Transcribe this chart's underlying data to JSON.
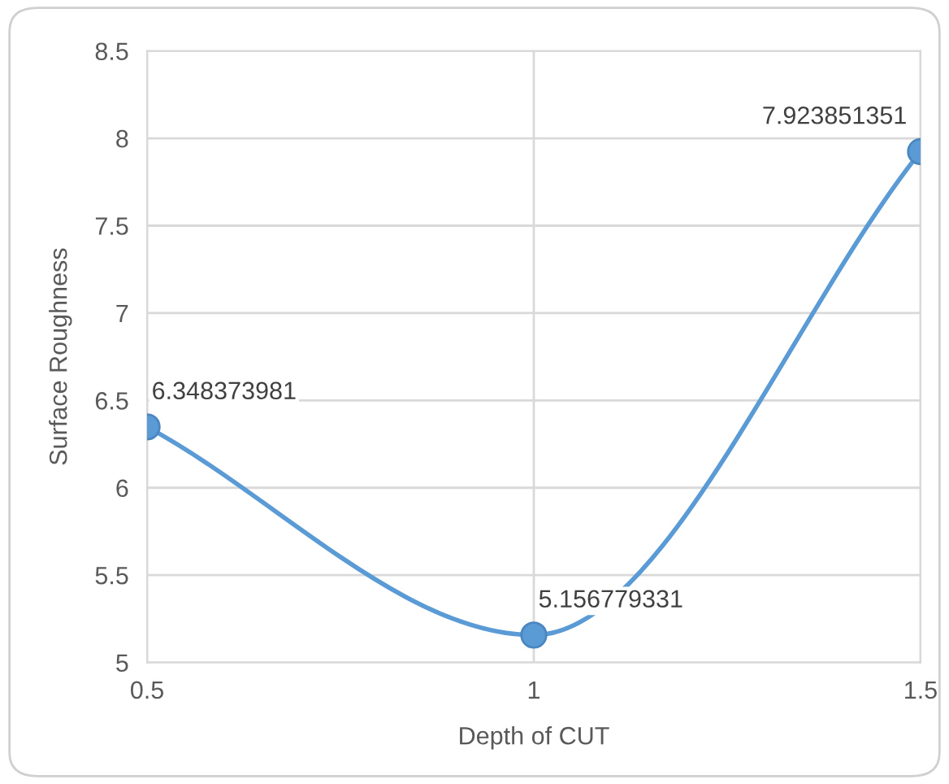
{
  "chart_data": {
    "type": "line",
    "xlabel": "Depth of CUT",
    "ylabel": "Surface Roughness",
    "x": [
      0.5,
      1,
      1.5
    ],
    "series": [
      {
        "color": "#5b9bd5",
        "values": [
          6.348373981,
          5.156779331,
          7.923851351
        ]
      }
    ],
    "xlim": [
      0.5,
      1.5
    ],
    "xticks": [
      0.5,
      1,
      1.5
    ],
    "ylim": [
      5,
      8.5
    ],
    "yticks": [
      5,
      5.5,
      6,
      6.5,
      7,
      7.5,
      8,
      8.5
    ],
    "grid": true,
    "marker": "circle",
    "line_style": "solid",
    "data_labels": true
  }
}
